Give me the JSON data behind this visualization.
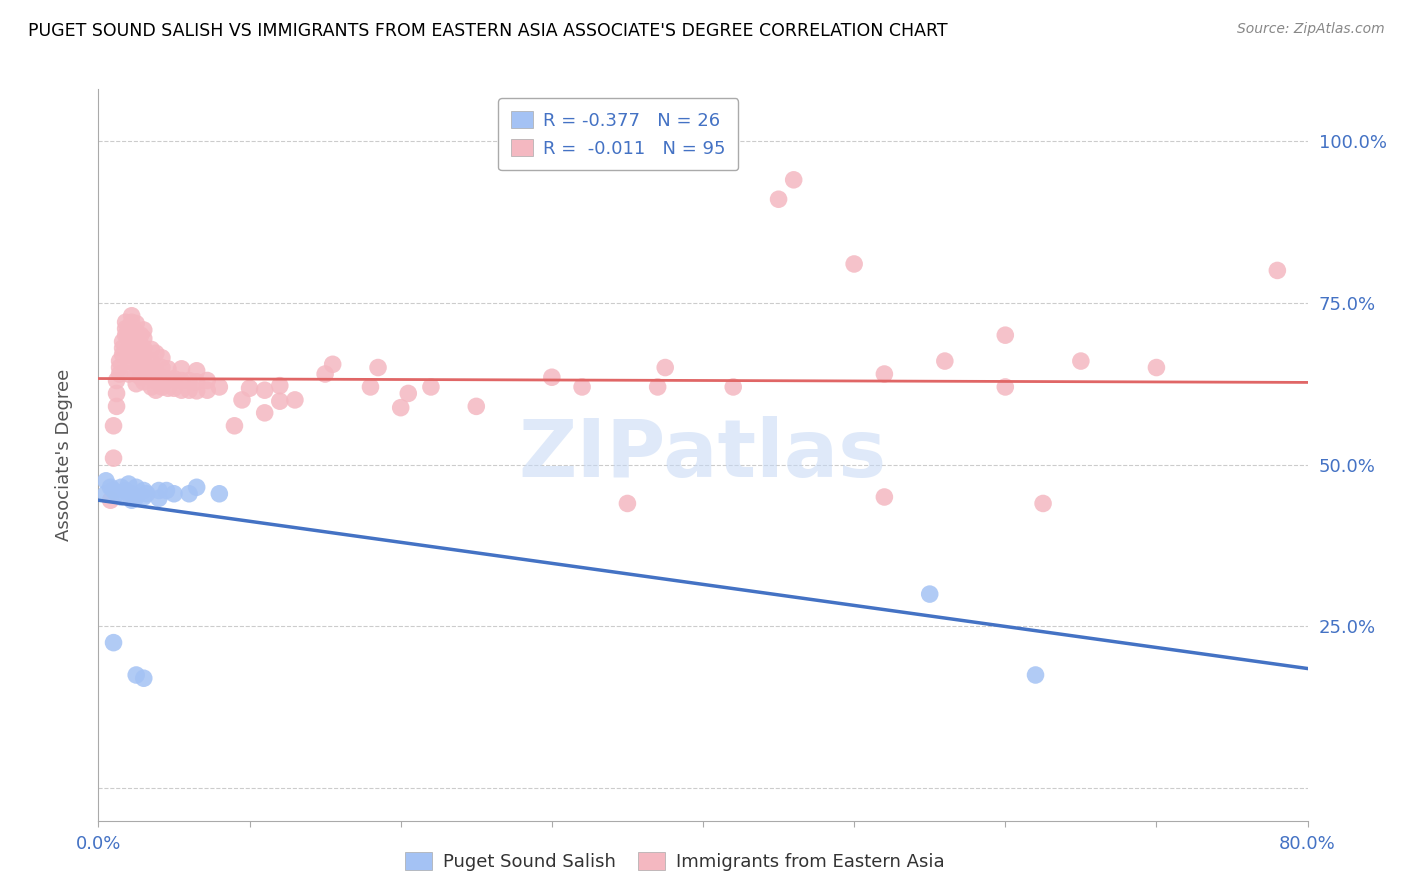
{
  "title": "PUGET SOUND SALISH VS IMMIGRANTS FROM EASTERN ASIA ASSOCIATE'S DEGREE CORRELATION CHART",
  "source": "Source: ZipAtlas.com",
  "ylabel": "Associate's Degree",
  "xlim": [
    0.0,
    0.8
  ],
  "ylim": [
    -0.05,
    1.08
  ],
  "ytick_values": [
    0.0,
    0.25,
    0.5,
    0.75,
    1.0
  ],
  "ytick_labels": [
    "",
    "",
    "",
    "",
    ""
  ],
  "ytick_right_labels": [
    "",
    "25.0%",
    "50.0%",
    "75.0%",
    "100.0%"
  ],
  "xtick_values": [
    0.0,
    0.1,
    0.2,
    0.3,
    0.4,
    0.5,
    0.6,
    0.7,
    0.8
  ],
  "xtick_labels_left": "0.0%",
  "xtick_labels_right": "80.0%",
  "blue_scatter": [
    [
      0.005,
      0.455
    ],
    [
      0.005,
      0.475
    ],
    [
      0.008,
      0.465
    ],
    [
      0.01,
      0.46
    ],
    [
      0.012,
      0.455
    ],
    [
      0.015,
      0.465
    ],
    [
      0.015,
      0.45
    ],
    [
      0.018,
      0.46
    ],
    [
      0.02,
      0.47
    ],
    [
      0.022,
      0.455
    ],
    [
      0.022,
      0.445
    ],
    [
      0.025,
      0.465
    ],
    [
      0.025,
      0.45
    ],
    [
      0.03,
      0.46
    ],
    [
      0.03,
      0.45
    ],
    [
      0.032,
      0.455
    ],
    [
      0.04,
      0.46
    ],
    [
      0.04,
      0.448
    ],
    [
      0.045,
      0.46
    ],
    [
      0.05,
      0.455
    ],
    [
      0.06,
      0.455
    ],
    [
      0.065,
      0.465
    ],
    [
      0.08,
      0.455
    ],
    [
      0.01,
      0.225
    ],
    [
      0.025,
      0.175
    ],
    [
      0.03,
      0.17
    ],
    [
      0.55,
      0.3
    ],
    [
      0.62,
      0.175
    ]
  ],
  "blue_line": [
    [
      0.0,
      0.445
    ],
    [
      0.8,
      0.185
    ]
  ],
  "pink_scatter": [
    [
      0.008,
      0.445
    ],
    [
      0.01,
      0.51
    ],
    [
      0.01,
      0.56
    ],
    [
      0.012,
      0.59
    ],
    [
      0.012,
      0.61
    ],
    [
      0.012,
      0.63
    ],
    [
      0.014,
      0.64
    ],
    [
      0.014,
      0.65
    ],
    [
      0.014,
      0.66
    ],
    [
      0.016,
      0.67
    ],
    [
      0.016,
      0.68
    ],
    [
      0.016,
      0.69
    ],
    [
      0.018,
      0.7
    ],
    [
      0.018,
      0.71
    ],
    [
      0.018,
      0.72
    ],
    [
      0.02,
      0.64
    ],
    [
      0.02,
      0.66
    ],
    [
      0.02,
      0.67
    ],
    [
      0.02,
      0.68
    ],
    [
      0.02,
      0.695
    ],
    [
      0.02,
      0.71
    ],
    [
      0.022,
      0.72
    ],
    [
      0.022,
      0.73
    ],
    [
      0.025,
      0.625
    ],
    [
      0.025,
      0.64
    ],
    [
      0.025,
      0.655
    ],
    [
      0.025,
      0.665
    ],
    [
      0.025,
      0.675
    ],
    [
      0.025,
      0.69
    ],
    [
      0.025,
      0.705
    ],
    [
      0.025,
      0.718
    ],
    [
      0.028,
      0.635
    ],
    [
      0.028,
      0.648
    ],
    [
      0.028,
      0.66
    ],
    [
      0.028,
      0.672
    ],
    [
      0.028,
      0.685
    ],
    [
      0.028,
      0.7
    ],
    [
      0.03,
      0.628
    ],
    [
      0.03,
      0.642
    ],
    [
      0.03,
      0.656
    ],
    [
      0.03,
      0.668
    ],
    [
      0.03,
      0.68
    ],
    [
      0.03,
      0.695
    ],
    [
      0.03,
      0.708
    ],
    [
      0.035,
      0.62
    ],
    [
      0.035,
      0.635
    ],
    [
      0.035,
      0.648
    ],
    [
      0.035,
      0.66
    ],
    [
      0.035,
      0.678
    ],
    [
      0.038,
      0.615
    ],
    [
      0.038,
      0.63
    ],
    [
      0.038,
      0.645
    ],
    [
      0.038,
      0.672
    ],
    [
      0.042,
      0.62
    ],
    [
      0.042,
      0.635
    ],
    [
      0.042,
      0.65
    ],
    [
      0.042,
      0.665
    ],
    [
      0.046,
      0.618
    ],
    [
      0.046,
      0.632
    ],
    [
      0.046,
      0.648
    ],
    [
      0.05,
      0.618
    ],
    [
      0.05,
      0.633
    ],
    [
      0.055,
      0.615
    ],
    [
      0.055,
      0.63
    ],
    [
      0.055,
      0.648
    ],
    [
      0.06,
      0.615
    ],
    [
      0.06,
      0.63
    ],
    [
      0.065,
      0.614
    ],
    [
      0.065,
      0.628
    ],
    [
      0.065,
      0.645
    ],
    [
      0.072,
      0.615
    ],
    [
      0.072,
      0.63
    ],
    [
      0.08,
      0.62
    ],
    [
      0.09,
      0.56
    ],
    [
      0.095,
      0.6
    ],
    [
      0.1,
      0.618
    ],
    [
      0.11,
      0.58
    ],
    [
      0.11,
      0.615
    ],
    [
      0.12,
      0.598
    ],
    [
      0.12,
      0.622
    ],
    [
      0.13,
      0.6
    ],
    [
      0.15,
      0.64
    ],
    [
      0.155,
      0.655
    ],
    [
      0.18,
      0.62
    ],
    [
      0.185,
      0.65
    ],
    [
      0.2,
      0.588
    ],
    [
      0.205,
      0.61
    ],
    [
      0.22,
      0.62
    ],
    [
      0.25,
      0.59
    ],
    [
      0.3,
      0.635
    ],
    [
      0.32,
      0.62
    ],
    [
      0.35,
      0.44
    ],
    [
      0.37,
      0.62
    ],
    [
      0.375,
      0.65
    ],
    [
      0.42,
      0.62
    ],
    [
      0.45,
      0.91
    ],
    [
      0.46,
      0.94
    ],
    [
      0.5,
      0.81
    ],
    [
      0.52,
      0.64
    ],
    [
      0.52,
      0.45
    ],
    [
      0.56,
      0.66
    ],
    [
      0.6,
      0.7
    ],
    [
      0.6,
      0.62
    ],
    [
      0.625,
      0.44
    ],
    [
      0.65,
      0.66
    ],
    [
      0.7,
      0.65
    ],
    [
      0.78,
      0.8
    ]
  ],
  "pink_line": [
    [
      0.0,
      0.633
    ],
    [
      0.8,
      0.627
    ]
  ],
  "watermark": "ZIPatlas",
  "blue_color": "#a4c2f4",
  "pink_color": "#f4b8c1",
  "blue_line_color": "#4472c4",
  "pink_line_color": "#e06666",
  "background_color": "#ffffff",
  "grid_color": "#cccccc",
  "title_color": "#000000",
  "tick_color": "#4472c4",
  "legend_r_color": "#000000",
  "legend_val_color": "#4472c4"
}
